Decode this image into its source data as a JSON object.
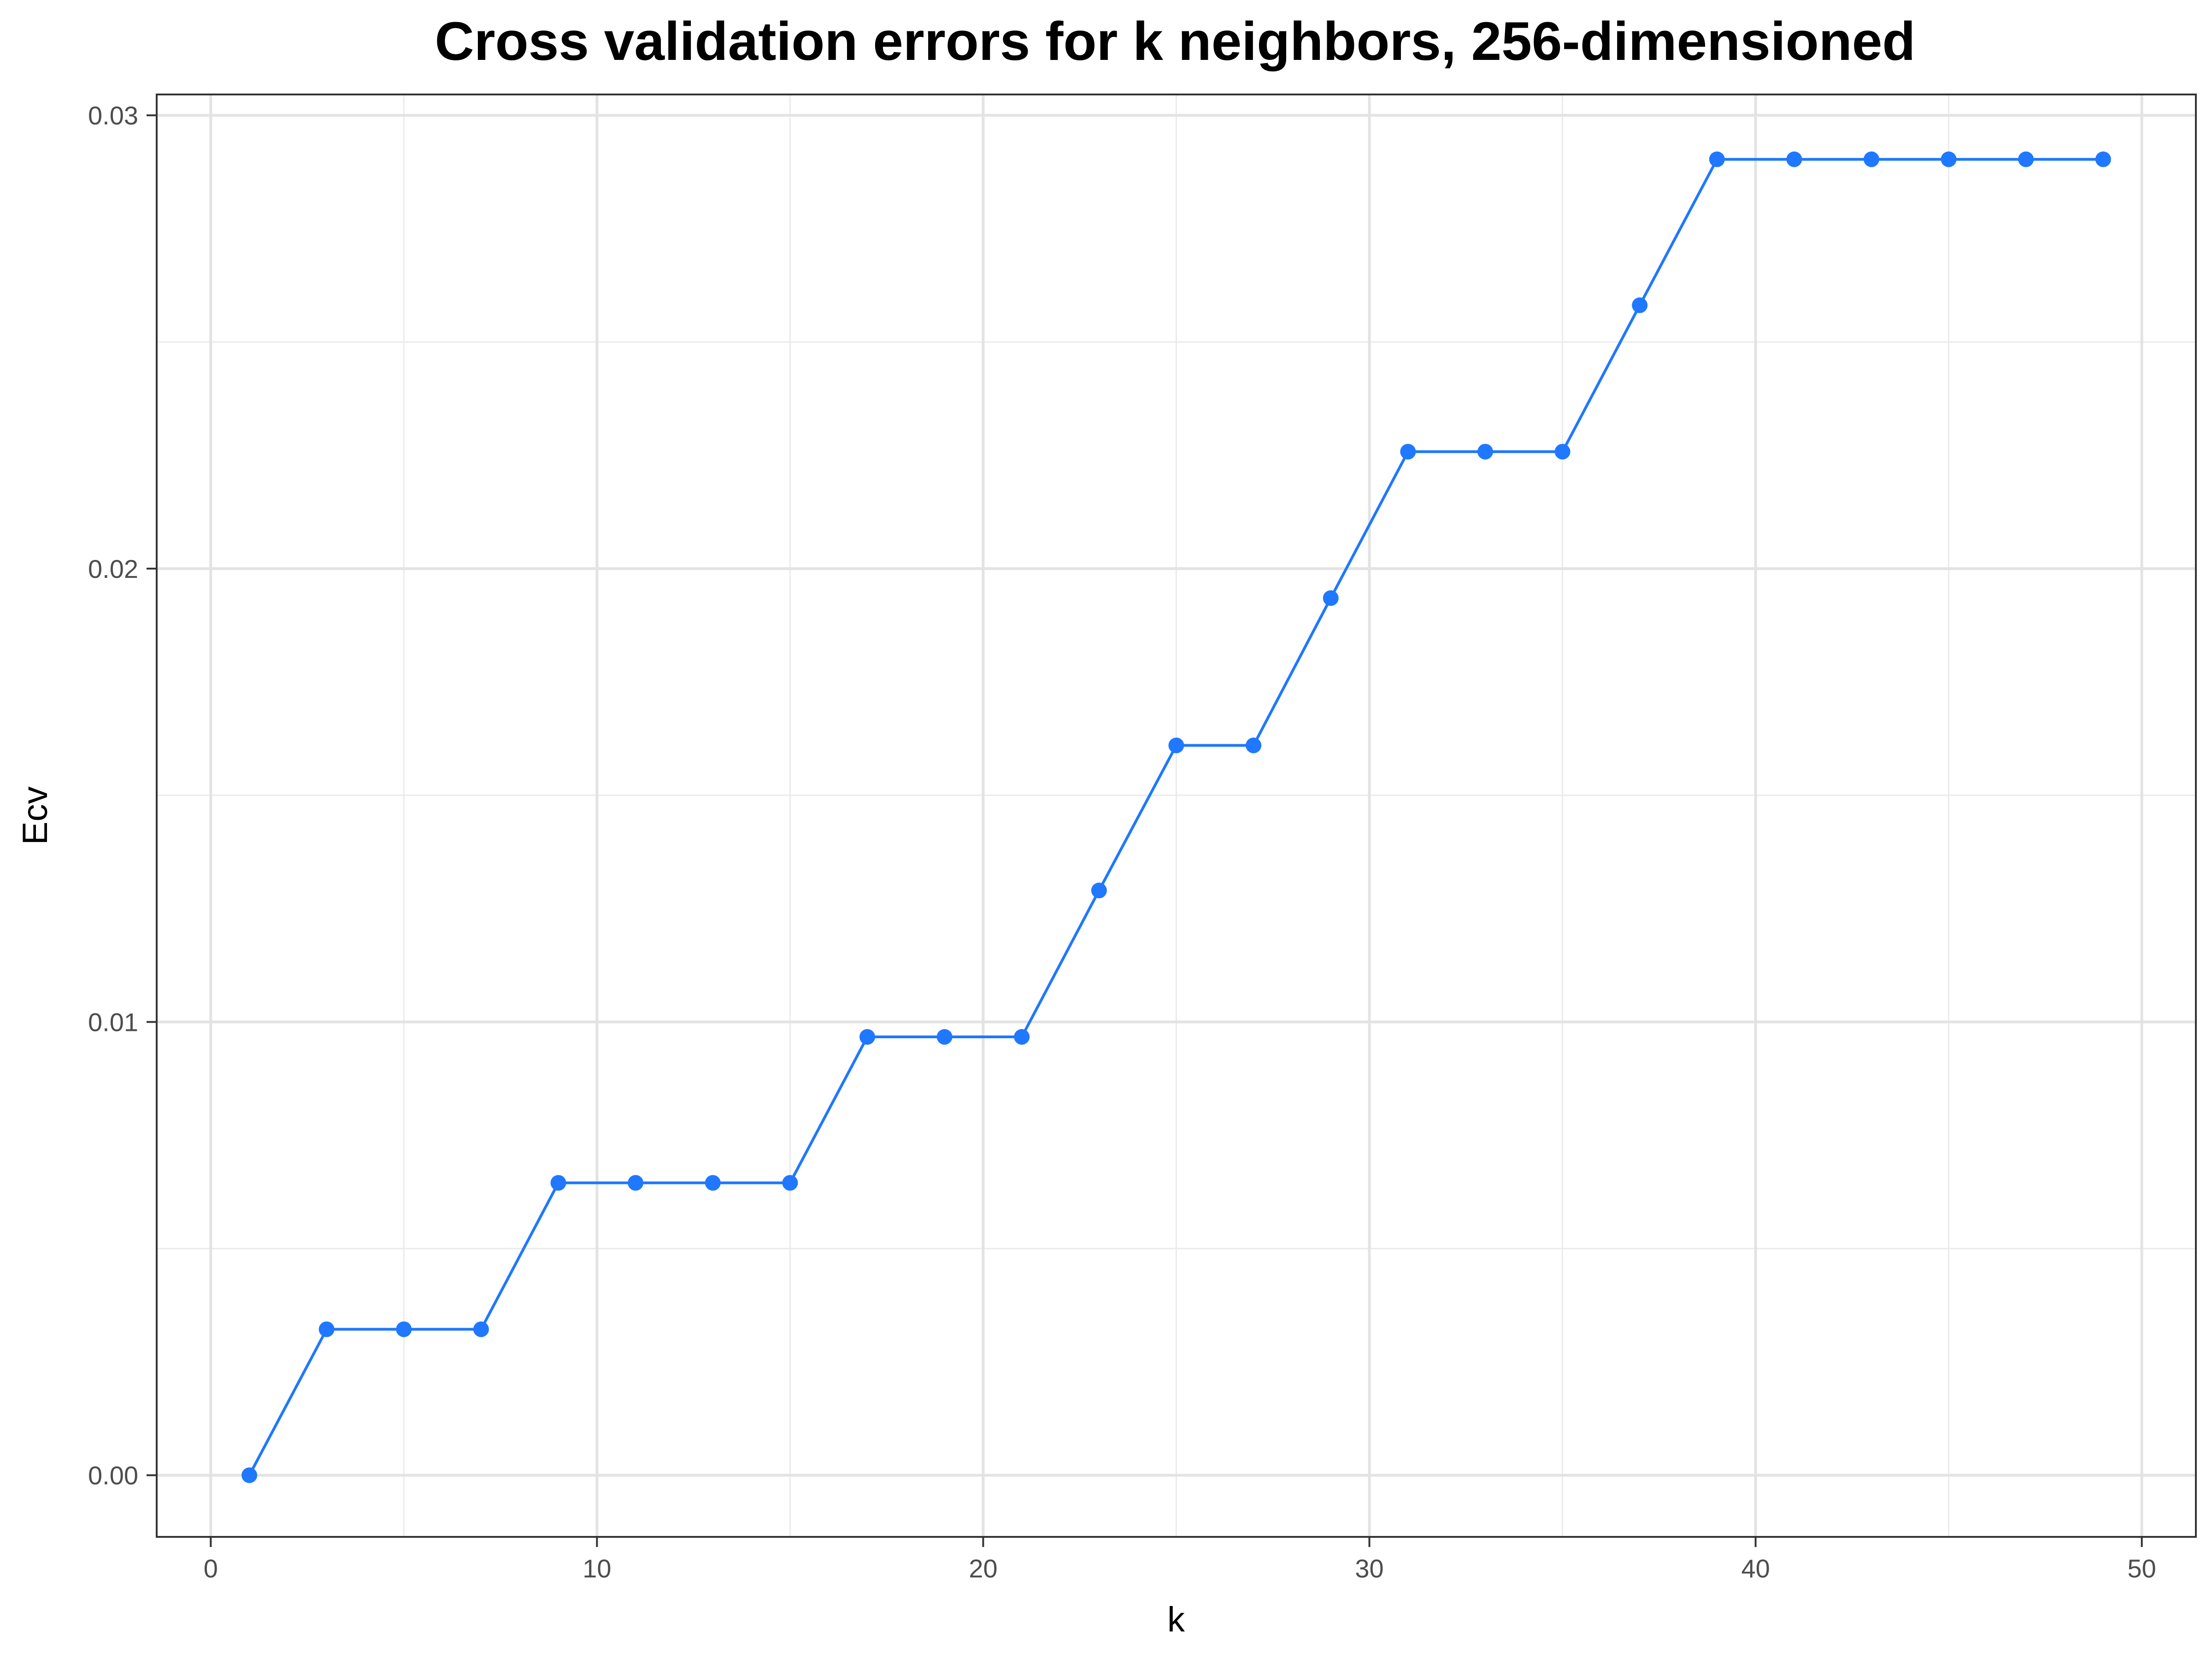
{
  "chart_data": {
    "type": "line",
    "title": "Cross validation errors for k neighbors, 256-dimensioned",
    "xlabel": "k",
    "ylabel": "Ecv",
    "xlim": [
      -1.4,
      51.4
    ],
    "ylim": [
      -0.00136,
      0.03046
    ],
    "x_ticks": [
      0,
      10,
      20,
      30,
      40,
      50
    ],
    "x_tick_labels": [
      "0",
      "10",
      "20",
      "30",
      "40",
      "50"
    ],
    "y_ticks": [
      0.0,
      0.01,
      0.02,
      0.03
    ],
    "y_tick_labels": [
      "0.00",
      "0.01",
      "0.02",
      "0.03"
    ],
    "x_minor_ticks": [
      5,
      15,
      25,
      35,
      45
    ],
    "y_minor_ticks": [
      0.005,
      0.015,
      0.025
    ],
    "grid": true,
    "legend": "none",
    "series": [
      {
        "color": "#1f78ff",
        "markers": true,
        "x": [
          1,
          3,
          5,
          7,
          9,
          11,
          13,
          15,
          17,
          19,
          21,
          23,
          25,
          27,
          29,
          31,
          33,
          35,
          37,
          39,
          41,
          43,
          45,
          47,
          49
        ],
        "y": [
          0.0,
          0.00322,
          0.00322,
          0.00322,
          0.00645,
          0.00645,
          0.00645,
          0.00645,
          0.00967,
          0.00967,
          0.00967,
          0.0129,
          0.0161,
          0.0161,
          0.01935,
          0.02258,
          0.02258,
          0.02258,
          0.02581,
          0.02903,
          0.02903,
          0.02903,
          0.02903,
          0.02903,
          0.02903
        ]
      }
    ]
  }
}
